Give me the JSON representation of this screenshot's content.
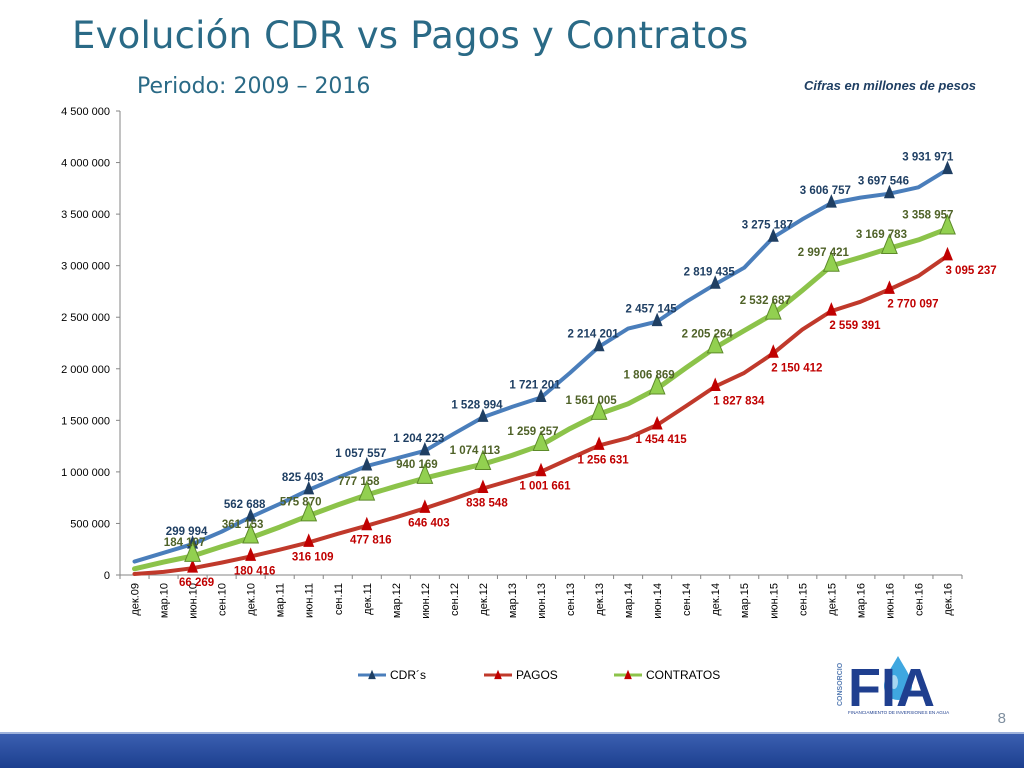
{
  "slide": {
    "title": "Evolución CDR vs Pagos y Contratos",
    "subtitle": "Periodo: 2009 – 2016",
    "units_note": "Cifras en millones de pesos",
    "page_number": "8"
  },
  "logo": {
    "letters": "FIA",
    "vertical_text": "CONSORCIO",
    "tagline": "FINANCIAMIENTO DE INVERSIONES EN AGUA"
  },
  "colors": {
    "cdr": "#4a7ebb",
    "cdr_label": "#1f3f63",
    "pagos": "#c0392b",
    "pagos_label": "#c00000",
    "contratos": "#8cc34a",
    "contratos_label": "#4f6228",
    "grid": "#bfbfbf"
  },
  "chart_data": {
    "type": "line",
    "title": "Evolución CDR vs Pagos y Contratos",
    "ylim": [
      0,
      4500000
    ],
    "y_ticks": [
      0,
      500000,
      1000000,
      1500000,
      2000000,
      2500000,
      3000000,
      3500000,
      4000000,
      4500000
    ],
    "y_tick_labels": [
      "0",
      "500 000",
      "1 000 000",
      "1 500 000",
      "2 000 000",
      "2 500 000",
      "3 000 000",
      "3 500 000",
      "4 000 000",
      "4 500 000"
    ],
    "categories": [
      "дек.09",
      "мар.10",
      "июн.10",
      "сен.10",
      "дек.10",
      "мар.11",
      "июн.11",
      "сен.11",
      "дек.11",
      "мар.12",
      "июн.12",
      "сен.12",
      "дек.12",
      "мар.13",
      "июн.13",
      "сен.13",
      "дек.13",
      "мар.14",
      "июн.14",
      "сен.14",
      "дек.14",
      "мар.15",
      "июн.15",
      "сен.15",
      "дек.15",
      "мар.16",
      "июн.16",
      "сен.16",
      "дек.16"
    ],
    "legend": [
      "CDR´s",
      "PAGOS",
      "CONTRATOS"
    ],
    "series": [
      {
        "name": "CDR´s",
        "values": [
          130000,
          215000,
          299994,
          420000,
          562688,
          690000,
          825403,
          945000,
          1057557,
          1130000,
          1204223,
          1370000,
          1528994,
          1630000,
          1721201,
          1960000,
          2214201,
          2390000,
          2457145,
          2650000,
          2819435,
          2980000,
          3275187,
          3450000,
          3606757,
          3660000,
          3697546,
          3760000,
          3931971
        ],
        "labels": [
          null,
          null,
          "299 994",
          null,
          "562 688",
          null,
          "825 403",
          null,
          "1 057 557",
          null,
          "1 204 223",
          null,
          "1 528 994",
          null,
          "1 721 201",
          null,
          "2 214 201",
          null,
          "2 457 145",
          null,
          "2 819 435",
          null,
          "3 275 187",
          null,
          "3 606 757",
          null,
          "3 697 546",
          null,
          "3 931 971"
        ]
      },
      {
        "name": "PAGOS",
        "values": [
          10000,
          30000,
          66269,
          120000,
          180416,
          245000,
          316109,
          400000,
          477816,
          560000,
          646403,
          740000,
          838548,
          920000,
          1001661,
          1130000,
          1256631,
          1330000,
          1454415,
          1640000,
          1827834,
          1960000,
          2150412,
          2380000,
          2559391,
          2650000,
          2770097,
          2900000,
          3095237
        ],
        "labels": [
          null,
          null,
          "66 269",
          null,
          "180 416",
          null,
          "316 109",
          null,
          "477 816",
          null,
          "646 403",
          null,
          "838 548",
          null,
          "1 001 661",
          null,
          "1 256 631",
          null,
          "1 454 415",
          null,
          "1 827 834",
          null,
          "2 150 412",
          null,
          "2 559 391",
          null,
          "2 770 097",
          null,
          "3 095 237"
        ]
      },
      {
        "name": "CONTRATOS",
        "values": [
          60000,
          125000,
          184107,
          275000,
          361153,
          465000,
          575870,
          680000,
          777158,
          860000,
          940169,
          1010000,
          1074113,
          1160000,
          1259257,
          1420000,
          1561005,
          1660000,
          1806869,
          2010000,
          2205264,
          2370000,
          2532687,
          2760000,
          2997421,
          3080000,
          3169783,
          3250000,
          3358957
        ]
      }
    ],
    "contratos_labels": [
      null,
      null,
      "184 107",
      null,
      "361 153",
      null,
      "575 870",
      null,
      "777 158",
      null,
      "940 169",
      null,
      "1 074 113",
      null,
      "1 259 257",
      null,
      "1 561 005",
      null,
      "1 806 869",
      null,
      "2 205 264",
      null,
      "2 532 687",
      null,
      "2 997 421",
      null,
      "3 169 783",
      null,
      "3 358 957"
    ]
  }
}
